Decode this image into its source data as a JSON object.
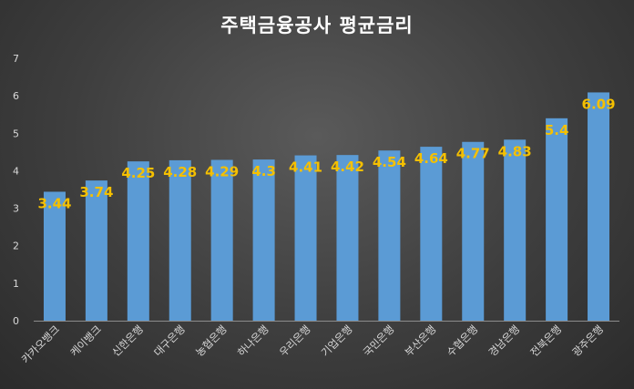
{
  "colors": {
    "bar": "#5b9bd5",
    "data_label": "#f5c000",
    "text": "#d9d9d9",
    "title": "#ffffff"
  },
  "chart_data": {
    "type": "bar",
    "title": "주택금융공사 평균금리",
    "xlabel": "",
    "ylabel": "",
    "ylim": [
      0,
      7
    ],
    "yticks": [
      0,
      1,
      2,
      3,
      4,
      5,
      6,
      7
    ],
    "grid": false,
    "legend": "none",
    "categories": [
      "카카오뱅크",
      "케이뱅크",
      "신한은행",
      "대구은행",
      "농협은행",
      "하나은행",
      "우리은행",
      "기업은행",
      "국민은행",
      "부산은행",
      "수협은행",
      "경남은행",
      "전북은행",
      "광주은행"
    ],
    "values": [
      3.44,
      3.74,
      4.25,
      4.28,
      4.29,
      4.3,
      4.41,
      4.42,
      4.54,
      4.64,
      4.77,
      4.83,
      5.4,
      6.09
    ],
    "data_labels": [
      "3.44",
      "3.74",
      "4.25",
      "4.28",
      "4.29",
      "4.3",
      "4.41",
      "4.42",
      "4.54",
      "4.64",
      "4.77",
      "4.83",
      "5.4",
      "6.09"
    ]
  }
}
